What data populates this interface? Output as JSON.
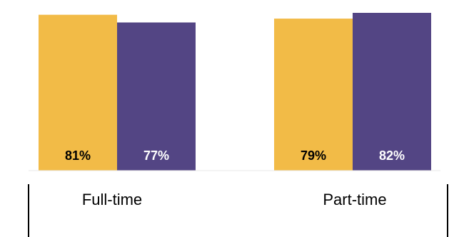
{
  "chart_data": {
    "type": "bar",
    "categories": [
      "Full-time",
      "Part-time"
    ],
    "series": [
      {
        "values": [
          81,
          79
        ],
        "color": "#F2BB47",
        "label_color": "#000000"
      },
      {
        "values": [
          77,
          82
        ],
        "color": "#534584",
        "label_color": "#ffffff"
      }
    ],
    "data_labels": [
      [
        "81%",
        "79%"
      ],
      [
        "77%",
        "82%"
      ]
    ],
    "grid": false,
    "legend": "none"
  }
}
